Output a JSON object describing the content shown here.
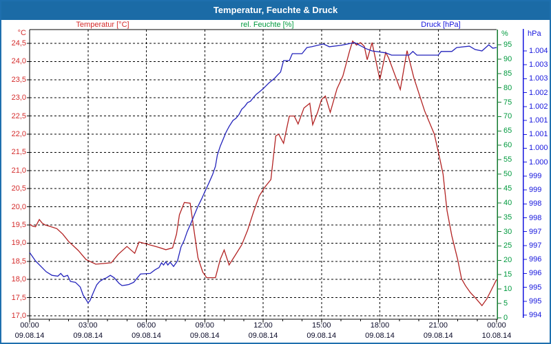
{
  "window": {
    "title": "Temperatur, Feuchte & Druck"
  },
  "colors": {
    "titlebar_bg": "#1b6ba6",
    "titlebar_text": "#ffffff",
    "frame_border": "#1e6fae",
    "grid": "#000000",
    "x_label_text": "#0a0a28",
    "temp_label": "#d42b2b",
    "temp_curve": "#b22222",
    "humidity_label": "#009a3e",
    "humidity_axis_line": "#117a2e",
    "pressure_label": "#1515dd",
    "pressure_curve": "#2222bb"
  },
  "chart_data": {
    "type": "line",
    "title": "Temperatur, Feuchte & Druck",
    "grid": "dashed",
    "x_axis": {
      "range_hours": [
        0,
        24
      ],
      "major_tick_hours": [
        0,
        3,
        6,
        9,
        12,
        15,
        18,
        21,
        24
      ],
      "minor_tick_step_hours": 1,
      "time_labels": [
        "00:00",
        "03:00",
        "06:00",
        "09:00",
        "12:00",
        "15:00",
        "18:00",
        "21:00",
        "00:00"
      ],
      "date_labels": [
        "09.08.14",
        "09.08.14",
        "09.08.14",
        "09.08.14",
        "09.08.14",
        "09.08.14",
        "09.08.14",
        "09.08.14",
        "10.08.14"
      ]
    },
    "y_axes": [
      {
        "id": "temperature",
        "label": "Temperatur [°C]",
        "unit": "°C",
        "side": "left",
        "min": 17.0,
        "max": 24.5,
        "step": 0.5,
        "tick_labels": [
          "24,5",
          "24,0",
          "23,5",
          "23,0",
          "22,5",
          "22,0",
          "21,5",
          "21,0",
          "20,5",
          "20,0",
          "19,5",
          "19,0",
          "18,5",
          "18,0",
          "17,5",
          "17,0"
        ]
      },
      {
        "id": "humidity",
        "label": "rel. Feuchte [%]",
        "unit": "%",
        "side": "right",
        "min": 0,
        "max": 95,
        "step": 5,
        "tick_labels": [
          "95",
          "90",
          "85",
          "80",
          "75",
          "70",
          "65",
          "60",
          "55",
          "50",
          "45",
          "40",
          "35",
          "30",
          "25",
          "20",
          "15",
          "10",
          "5",
          "0"
        ]
      },
      {
        "id": "pressure",
        "label": "Druck [hPa]",
        "unit": "hPa",
        "side": "right-outer",
        "min": 994.5,
        "max": 1004.0,
        "step": 0.5,
        "tick_labels": [
          "1.004",
          "1.003",
          "1.003",
          "1.002",
          "1.002",
          "1.001",
          "1.001",
          "1.000",
          "1.000",
          "999",
          "999",
          "998",
          "998",
          "997",
          "997",
          "996",
          "996",
          "995",
          "995",
          "994"
        ]
      }
    ],
    "series": [
      {
        "name": "Temperatur",
        "axis": "temperature",
        "color": "#b22222",
        "points": [
          [
            0,
            19.52
          ],
          [
            0.15,
            19.47
          ],
          [
            0.3,
            19.45
          ],
          [
            0.5,
            19.65
          ],
          [
            0.65,
            19.55
          ],
          [
            0.8,
            19.5
          ],
          [
            1.0,
            19.47
          ],
          [
            1.4,
            19.4
          ],
          [
            1.7,
            19.25
          ],
          [
            2.0,
            19.05
          ],
          [
            2.5,
            18.8
          ],
          [
            2.9,
            18.55
          ],
          [
            3.4,
            18.42
          ],
          [
            3.8,
            18.44
          ],
          [
            4.2,
            18.46
          ],
          [
            4.55,
            18.69
          ],
          [
            5.0,
            18.91
          ],
          [
            5.4,
            18.72
          ],
          [
            5.62,
            19.03
          ],
          [
            6.0,
            18.98
          ],
          [
            6.6,
            18.89
          ],
          [
            7.0,
            18.82
          ],
          [
            7.35,
            18.87
          ],
          [
            7.55,
            19.25
          ],
          [
            7.7,
            19.78
          ],
          [
            7.95,
            20.12
          ],
          [
            8.25,
            20.1
          ],
          [
            8.45,
            19.35
          ],
          [
            8.65,
            18.6
          ],
          [
            8.9,
            18.2
          ],
          [
            9.1,
            18.05
          ],
          [
            9.55,
            18.05
          ],
          [
            9.8,
            18.56
          ],
          [
            10.0,
            18.81
          ],
          [
            10.25,
            18.4
          ],
          [
            10.55,
            18.65
          ],
          [
            10.9,
            18.95
          ],
          [
            11.2,
            19.35
          ],
          [
            11.5,
            19.85
          ],
          [
            11.8,
            20.3
          ],
          [
            12.1,
            20.55
          ],
          [
            12.4,
            20.75
          ],
          [
            12.65,
            21.95
          ],
          [
            12.8,
            22.0
          ],
          [
            13.05,
            21.75
          ],
          [
            13.35,
            22.5
          ],
          [
            13.6,
            22.5
          ],
          [
            13.8,
            22.28
          ],
          [
            14.1,
            22.72
          ],
          [
            14.4,
            22.85
          ],
          [
            14.55,
            22.26
          ],
          [
            14.8,
            22.6
          ],
          [
            15.0,
            22.95
          ],
          [
            15.2,
            23.05
          ],
          [
            15.45,
            22.6
          ],
          [
            15.8,
            23.25
          ],
          [
            16.1,
            23.6
          ],
          [
            16.45,
            24.3
          ],
          [
            16.6,
            24.56
          ],
          [
            16.8,
            24.45
          ],
          [
            17.0,
            24.52
          ],
          [
            17.2,
            24.42
          ],
          [
            17.35,
            24.05
          ],
          [
            17.6,
            24.52
          ],
          [
            18.0,
            23.5
          ],
          [
            18.3,
            24.25
          ],
          [
            18.45,
            24.1
          ],
          [
            19.05,
            23.23
          ],
          [
            19.4,
            24.3
          ],
          [
            19.75,
            23.55
          ],
          [
            20.3,
            22.64
          ],
          [
            20.8,
            22.0
          ],
          [
            21.05,
            21.4
          ],
          [
            21.25,
            20.9
          ],
          [
            21.45,
            19.9
          ],
          [
            21.7,
            19.2
          ],
          [
            22.0,
            18.55
          ],
          [
            22.2,
            18.02
          ],
          [
            22.4,
            17.83
          ],
          [
            22.65,
            17.64
          ],
          [
            22.95,
            17.47
          ],
          [
            23.25,
            17.28
          ],
          [
            23.5,
            17.47
          ],
          [
            23.72,
            17.7
          ],
          [
            24.0,
            18.0
          ]
        ]
      },
      {
        "name": "Druck",
        "axis": "pressure",
        "color": "#2222bb",
        "points": [
          [
            0,
            996.75
          ],
          [
            0.3,
            996.45
          ],
          [
            0.85,
            996.06
          ],
          [
            1.15,
            995.93
          ],
          [
            1.45,
            995.9
          ],
          [
            1.6,
            996.0
          ],
          [
            1.75,
            995.88
          ],
          [
            1.95,
            995.93
          ],
          [
            2.1,
            995.71
          ],
          [
            2.35,
            995.68
          ],
          [
            2.5,
            995.58
          ],
          [
            2.6,
            995.51
          ],
          [
            2.75,
            995.22
          ],
          [
            2.9,
            995.06
          ],
          [
            3.0,
            994.94
          ],
          [
            3.1,
            995.02
          ],
          [
            3.25,
            995.27
          ],
          [
            3.35,
            995.43
          ],
          [
            3.45,
            995.59
          ],
          [
            3.6,
            995.71
          ],
          [
            3.8,
            995.8
          ],
          [
            3.95,
            995.84
          ],
          [
            4.15,
            995.93
          ],
          [
            4.35,
            995.84
          ],
          [
            4.6,
            995.64
          ],
          [
            4.75,
            995.56
          ],
          [
            4.95,
            995.58
          ],
          [
            5.1,
            995.6
          ],
          [
            5.35,
            995.68
          ],
          [
            5.7,
            995.98
          ],
          [
            6.2,
            996.0
          ],
          [
            6.45,
            996.13
          ],
          [
            6.65,
            996.21
          ],
          [
            6.78,
            996.38
          ],
          [
            6.88,
            996.3
          ],
          [
            7.0,
            996.42
          ],
          [
            7.1,
            996.3
          ],
          [
            7.22,
            996.4
          ],
          [
            7.4,
            996.25
          ],
          [
            7.6,
            996.45
          ],
          [
            7.78,
            996.95
          ],
          [
            7.95,
            997.2
          ],
          [
            8.1,
            997.5
          ],
          [
            8.3,
            997.82
          ],
          [
            8.5,
            998.16
          ],
          [
            8.65,
            998.41
          ],
          [
            8.85,
            998.69
          ],
          [
            9.0,
            998.93
          ],
          [
            9.2,
            999.23
          ],
          [
            9.4,
            999.55
          ],
          [
            9.55,
            999.85
          ],
          [
            9.65,
            1000.26
          ],
          [
            9.8,
            1000.58
          ],
          [
            9.95,
            1000.83
          ],
          [
            10.1,
            1001.08
          ],
          [
            10.25,
            1001.28
          ],
          [
            10.45,
            1001.5
          ],
          [
            10.6,
            1001.57
          ],
          [
            10.75,
            1001.7
          ],
          [
            10.9,
            1001.9
          ],
          [
            11.05,
            1002.0
          ],
          [
            11.2,
            1002.14
          ],
          [
            11.35,
            1002.19
          ],
          [
            11.5,
            1002.32
          ],
          [
            11.65,
            1002.44
          ],
          [
            11.8,
            1002.52
          ],
          [
            12.0,
            1002.64
          ],
          [
            12.3,
            1002.85
          ],
          [
            12.6,
            1003.02
          ],
          [
            12.75,
            1003.14
          ],
          [
            12.9,
            1003.24
          ],
          [
            13.05,
            1003.65
          ],
          [
            13.35,
            1003.65
          ],
          [
            13.5,
            1003.9
          ],
          [
            14.0,
            1003.9
          ],
          [
            14.25,
            1004.12
          ],
          [
            14.5,
            1004.15
          ],
          [
            15.1,
            1004.25
          ],
          [
            15.4,
            1004.15
          ],
          [
            16.0,
            1004.2
          ],
          [
            16.7,
            1004.3
          ],
          [
            17.3,
            1004.08
          ],
          [
            17.6,
            1004.0
          ],
          [
            18.3,
            1003.93
          ],
          [
            18.6,
            1003.85
          ],
          [
            19.5,
            1003.85
          ],
          [
            19.7,
            1003.98
          ],
          [
            19.9,
            1003.85
          ],
          [
            21.0,
            1003.85
          ],
          [
            21.15,
            1003.98
          ],
          [
            21.7,
            1003.98
          ],
          [
            21.95,
            1004.12
          ],
          [
            22.6,
            1004.17
          ],
          [
            22.9,
            1004.05
          ],
          [
            23.25,
            1004.0
          ],
          [
            23.6,
            1004.22
          ],
          [
            23.8,
            1004.1
          ],
          [
            24.0,
            1004.12
          ]
        ]
      }
    ]
  }
}
